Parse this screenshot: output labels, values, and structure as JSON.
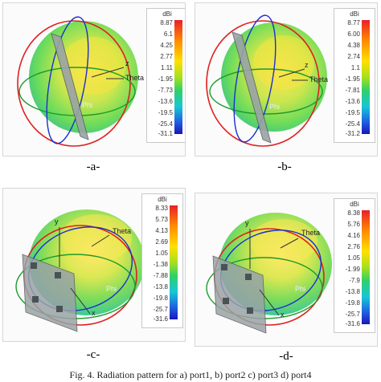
{
  "panels": [
    {
      "label": "-a-",
      "unit": "dBi",
      "scale": [
        "8.87",
        "6.1",
        "4.25",
        "2.77",
        "1.11",
        "-1.95",
        "-7.73",
        "-13.6",
        "-19.5",
        "-25.4",
        "-31.1"
      ],
      "axes": {
        "z": "z",
        "theta": "Theta",
        "phi": "Phi"
      }
    },
    {
      "label": "-b-",
      "unit": "dBi",
      "scale": [
        "8.77",
        "6.00",
        "4.38",
        "2.74",
        "1.1",
        "-1.95",
        "-7.81",
        "-13.6",
        "-19.5",
        "-25.4",
        "-31.2"
      ],
      "axes": {
        "z": "z",
        "theta": "Theta",
        "phi": "Phi"
      }
    },
    {
      "label": "-c-",
      "unit": "dBi",
      "scale": [
        "8.33",
        "5.73",
        "4.13",
        "2.69",
        "1.05",
        "-1.38",
        "-7.88",
        "-13.8",
        "-19.8",
        "-25.7",
        "-31.6"
      ],
      "axes": {
        "y": "y",
        "theta": "Theta",
        "phi": "Phi",
        "x": "x"
      }
    },
    {
      "label": "-d-",
      "unit": "dBi",
      "scale": [
        "8.38",
        "5.76",
        "4.16",
        "2.76",
        "1.05",
        "-1.99",
        "-7.9",
        "-13.8",
        "-19.8",
        "-25.7",
        "-31.6"
      ],
      "axes": {
        "y": "y",
        "theta": "Theta",
        "phi": "Phi",
        "x": "x"
      }
    }
  ],
  "caption": "Fig. 4. Radiation pattern for a) port1, b) port2 c) port3 d) port4"
}
